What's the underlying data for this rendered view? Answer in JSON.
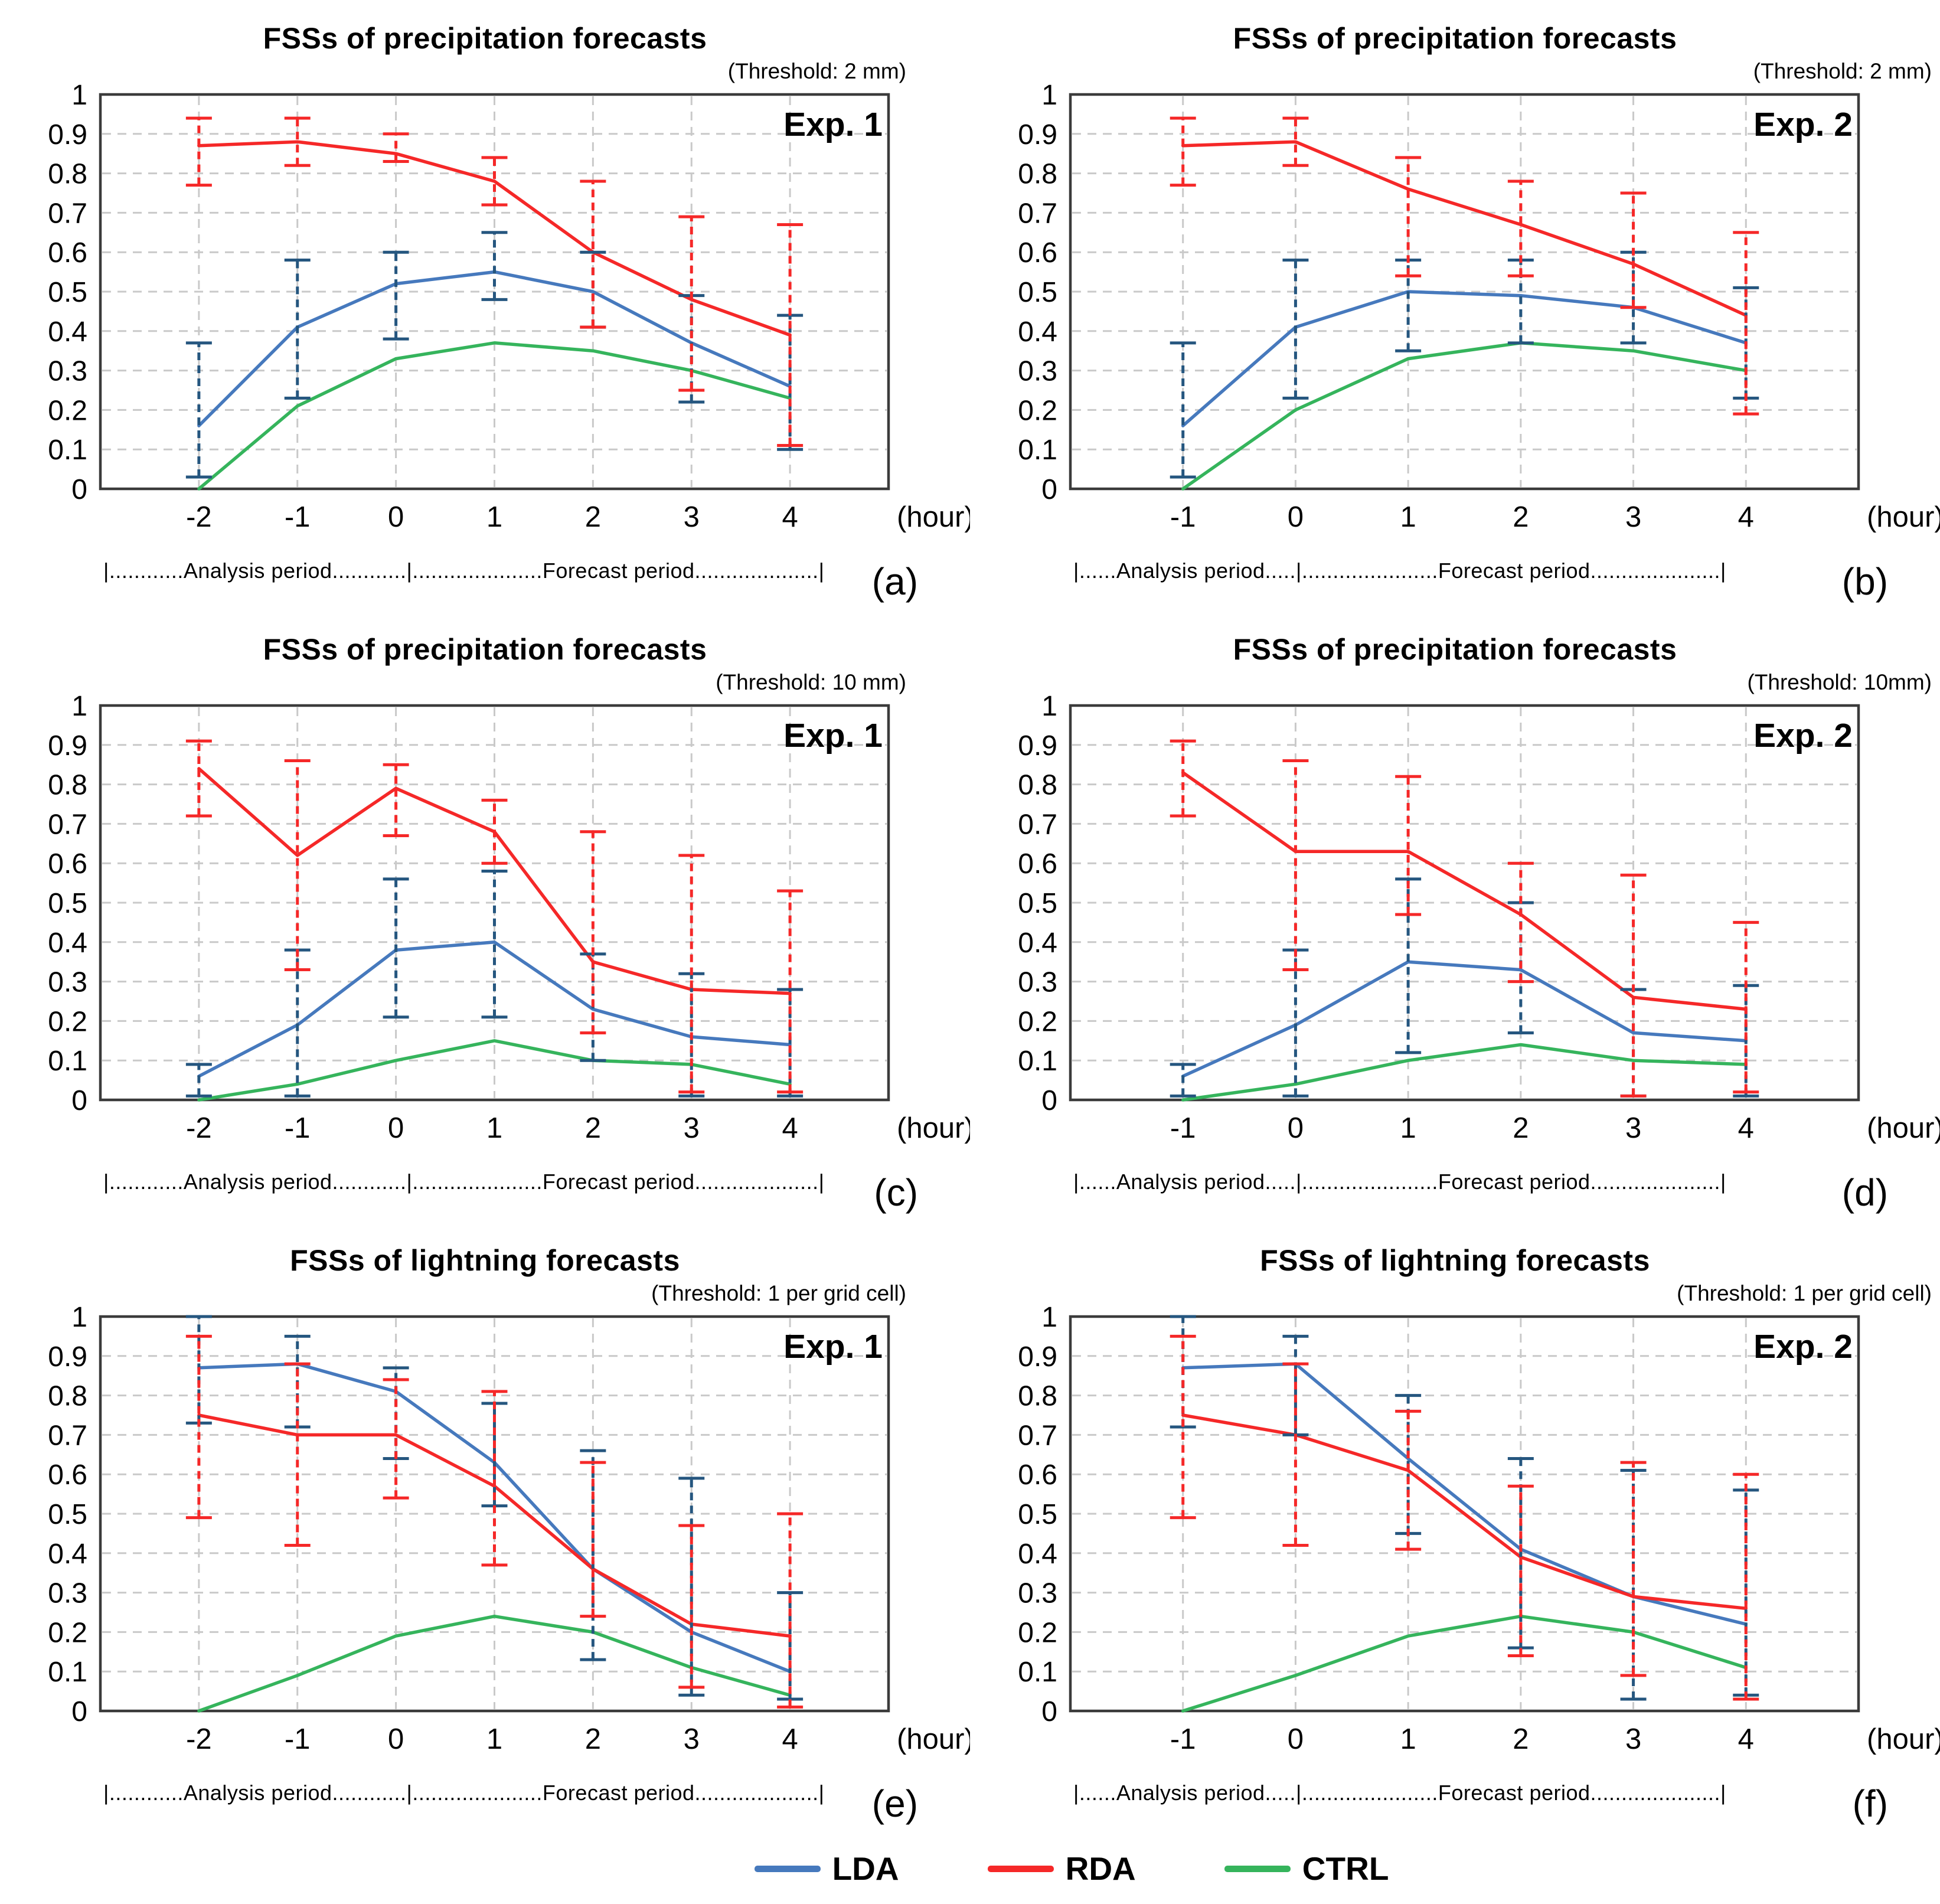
{
  "figure_background": "#ffffff",
  "colors": {
    "grid": "#C9C9C9",
    "frame": "#3B3B3B",
    "text": "#000000"
  },
  "series_styles": {
    "LDA": {
      "line": "#4679BD",
      "err": "#25567F"
    },
    "RDA": {
      "line": "#F52828",
      "err": "#F52828"
    },
    "CTRL": {
      "line": "#35B45C"
    }
  },
  "y_axis": {
    "min": 0,
    "max": 1,
    "ticks": [
      "1",
      "0.9",
      "0.8",
      "0.7",
      "0.6",
      "0.5",
      "0.4",
      "0.3",
      "0.2",
      "0.1",
      "0"
    ]
  },
  "x_axis_unit": "(hour)",
  "legend": {
    "items": [
      {
        "label": "LDA",
        "color": "#4679BD"
      },
      {
        "label": "RDA",
        "color": "#F52828"
      },
      {
        "label": "CTRL",
        "color": "#35B45C"
      }
    ]
  },
  "chart_data": [
    {
      "type": "line",
      "panel": "a",
      "letter": "(a)",
      "title": "FSSs of precipitation forecasts",
      "threshold": "(Threshold: 2 mm)",
      "exp": "Exp. 1",
      "x": [
        "-2",
        "-1",
        "0",
        "1",
        "2",
        "3",
        "4"
      ],
      "annotation": "|............Analysis period............|.....................Forecast period....................|",
      "ylim": [
        0,
        1
      ],
      "grid": true,
      "series": [
        {
          "name": "CTRL",
          "values": [
            0.0,
            0.21,
            0.33,
            0.37,
            0.35,
            0.3,
            0.23
          ]
        },
        {
          "name": "LDA",
          "values": [
            0.16,
            0.41,
            0.52,
            0.55,
            0.5,
            0.37,
            0.26
          ],
          "err_lo": [
            0.03,
            0.23,
            0.38,
            0.48,
            0.41,
            0.22,
            0.1
          ],
          "err_hi": [
            0.37,
            0.58,
            0.6,
            0.65,
            0.6,
            0.49,
            0.44
          ]
        },
        {
          "name": "RDA",
          "values": [
            0.87,
            0.88,
            0.85,
            0.78,
            0.6,
            0.48,
            0.39
          ],
          "err_lo": [
            0.77,
            0.82,
            0.83,
            0.72,
            0.41,
            0.25,
            0.11
          ],
          "err_hi": [
            0.94,
            0.94,
            0.9,
            0.84,
            0.78,
            0.69,
            0.67
          ]
        }
      ]
    },
    {
      "type": "line",
      "panel": "b",
      "letter": "(b)",
      "title": "FSSs of precipitation forecasts",
      "threshold": "(Threshold: 2 mm)",
      "exp": "Exp. 2",
      "x": [
        "-1",
        "0",
        "1",
        "2",
        "3",
        "4"
      ],
      "annotation": "|......Analysis period.....|......................Forecast period.....................|",
      "ylim": [
        0,
        1
      ],
      "grid": true,
      "series": [
        {
          "name": "CTRL",
          "values": [
            0.0,
            0.2,
            0.33,
            0.37,
            0.35,
            0.3
          ]
        },
        {
          "name": "LDA",
          "values": [
            0.16,
            0.41,
            0.5,
            0.49,
            0.46,
            0.37
          ],
          "err_lo": [
            0.03,
            0.23,
            0.35,
            0.37,
            0.37,
            0.23
          ],
          "err_hi": [
            0.37,
            0.58,
            0.58,
            0.58,
            0.6,
            0.51
          ]
        },
        {
          "name": "RDA",
          "values": [
            0.87,
            0.88,
            0.76,
            0.67,
            0.57,
            0.44
          ],
          "err_lo": [
            0.77,
            0.82,
            0.54,
            0.54,
            0.46,
            0.19
          ],
          "err_hi": [
            0.94,
            0.94,
            0.84,
            0.78,
            0.75,
            0.65
          ]
        }
      ]
    },
    {
      "type": "line",
      "panel": "c",
      "letter": "(c)",
      "title": "FSSs of precipitation forecasts",
      "threshold": "(Threshold: 10 mm)",
      "exp": "Exp. 1",
      "x": [
        "-2",
        "-1",
        "0",
        "1",
        "2",
        "3",
        "4"
      ],
      "annotation": "|............Analysis period............|.....................Forecast period....................|",
      "ylim": [
        0,
        1
      ],
      "grid": true,
      "series": [
        {
          "name": "CTRL",
          "values": [
            0.0,
            0.04,
            0.1,
            0.15,
            0.1,
            0.09,
            0.04
          ]
        },
        {
          "name": "LDA",
          "values": [
            0.06,
            0.19,
            0.38,
            0.4,
            0.23,
            0.16,
            0.14
          ],
          "err_lo": [
            0.01,
            0.01,
            0.21,
            0.21,
            0.1,
            0.01,
            0.01
          ],
          "err_hi": [
            0.09,
            0.38,
            0.56,
            0.58,
            0.37,
            0.32,
            0.28
          ]
        },
        {
          "name": "RDA",
          "values": [
            0.84,
            0.62,
            0.79,
            0.68,
            0.35,
            0.28,
            0.27
          ],
          "err_lo": [
            0.72,
            0.33,
            0.67,
            0.6,
            0.17,
            0.02,
            0.02
          ],
          "err_hi": [
            0.91,
            0.86,
            0.85,
            0.76,
            0.68,
            0.62,
            0.53
          ]
        }
      ]
    },
    {
      "type": "line",
      "panel": "d",
      "letter": "(d)",
      "title": "FSSs of precipitation forecasts",
      "threshold": "(Threshold: 10mm)",
      "exp": "Exp. 2",
      "x": [
        "-1",
        "0",
        "1",
        "2",
        "3",
        "4"
      ],
      "annotation": "|......Analysis period.....|......................Forecast period.....................|",
      "ylim": [
        0,
        1
      ],
      "grid": true,
      "series": [
        {
          "name": "CTRL",
          "values": [
            0.0,
            0.04,
            0.1,
            0.14,
            0.1,
            0.09
          ]
        },
        {
          "name": "LDA",
          "values": [
            0.06,
            0.19,
            0.35,
            0.33,
            0.17,
            0.15
          ],
          "err_lo": [
            0.01,
            0.01,
            0.12,
            0.17,
            0.01,
            0.01
          ],
          "err_hi": [
            0.09,
            0.38,
            0.56,
            0.5,
            0.28,
            0.29
          ]
        },
        {
          "name": "RDA",
          "values": [
            0.83,
            0.63,
            0.63,
            0.47,
            0.26,
            0.23
          ],
          "err_lo": [
            0.72,
            0.33,
            0.47,
            0.3,
            0.01,
            0.02
          ],
          "err_hi": [
            0.91,
            0.86,
            0.82,
            0.6,
            0.57,
            0.45
          ]
        }
      ]
    },
    {
      "type": "line",
      "panel": "e",
      "letter": "(e)",
      "title": "FSSs of lightning forecasts",
      "threshold": "(Threshold: 1 per grid cell)",
      "exp": "Exp. 1",
      "x": [
        "-2",
        "-1",
        "0",
        "1",
        "2",
        "3",
        "4"
      ],
      "annotation": "|............Analysis period............|.....................Forecast period....................|",
      "ylim": [
        0,
        1
      ],
      "grid": true,
      "series": [
        {
          "name": "CTRL",
          "values": [
            0.0,
            0.09,
            0.19,
            0.24,
            0.2,
            0.11,
            0.04
          ]
        },
        {
          "name": "LDA",
          "values": [
            0.87,
            0.88,
            0.81,
            0.63,
            0.36,
            0.2,
            0.1
          ],
          "err_lo": [
            0.73,
            0.72,
            0.64,
            0.52,
            0.13,
            0.04,
            0.03
          ],
          "err_hi": [
            1.0,
            0.95,
            0.87,
            0.78,
            0.66,
            0.59,
            0.3
          ]
        },
        {
          "name": "RDA",
          "values": [
            0.75,
            0.7,
            0.7,
            0.57,
            0.36,
            0.22,
            0.19
          ],
          "err_lo": [
            0.49,
            0.42,
            0.54,
            0.37,
            0.24,
            0.06,
            0.01
          ],
          "err_hi": [
            0.95,
            0.88,
            0.84,
            0.81,
            0.63,
            0.47,
            0.5
          ]
        }
      ]
    },
    {
      "type": "line",
      "panel": "f",
      "letter": "(f)",
      "title": "FSSs of lightning forecasts",
      "threshold": "(Threshold: 1 per grid cell)",
      "exp": "Exp. 2",
      "x": [
        "-1",
        "0",
        "1",
        "2",
        "3",
        "4"
      ],
      "annotation": "|......Analysis period.....|......................Forecast period.....................|",
      "ylim": [
        0,
        1
      ],
      "grid": true,
      "series": [
        {
          "name": "CTRL",
          "values": [
            0.0,
            0.09,
            0.19,
            0.24,
            0.2,
            0.11
          ]
        },
        {
          "name": "LDA",
          "values": [
            0.87,
            0.88,
            0.64,
            0.41,
            0.29,
            0.22
          ],
          "err_lo": [
            0.72,
            0.7,
            0.45,
            0.16,
            0.03,
            0.04
          ],
          "err_hi": [
            1.0,
            0.95,
            0.8,
            0.64,
            0.61,
            0.56
          ]
        },
        {
          "name": "RDA",
          "values": [
            0.75,
            0.7,
            0.61,
            0.39,
            0.29,
            0.26
          ],
          "err_lo": [
            0.49,
            0.42,
            0.41,
            0.14,
            0.09,
            0.03
          ],
          "err_hi": [
            0.95,
            0.88,
            0.76,
            0.57,
            0.63,
            0.6
          ]
        }
      ]
    }
  ]
}
